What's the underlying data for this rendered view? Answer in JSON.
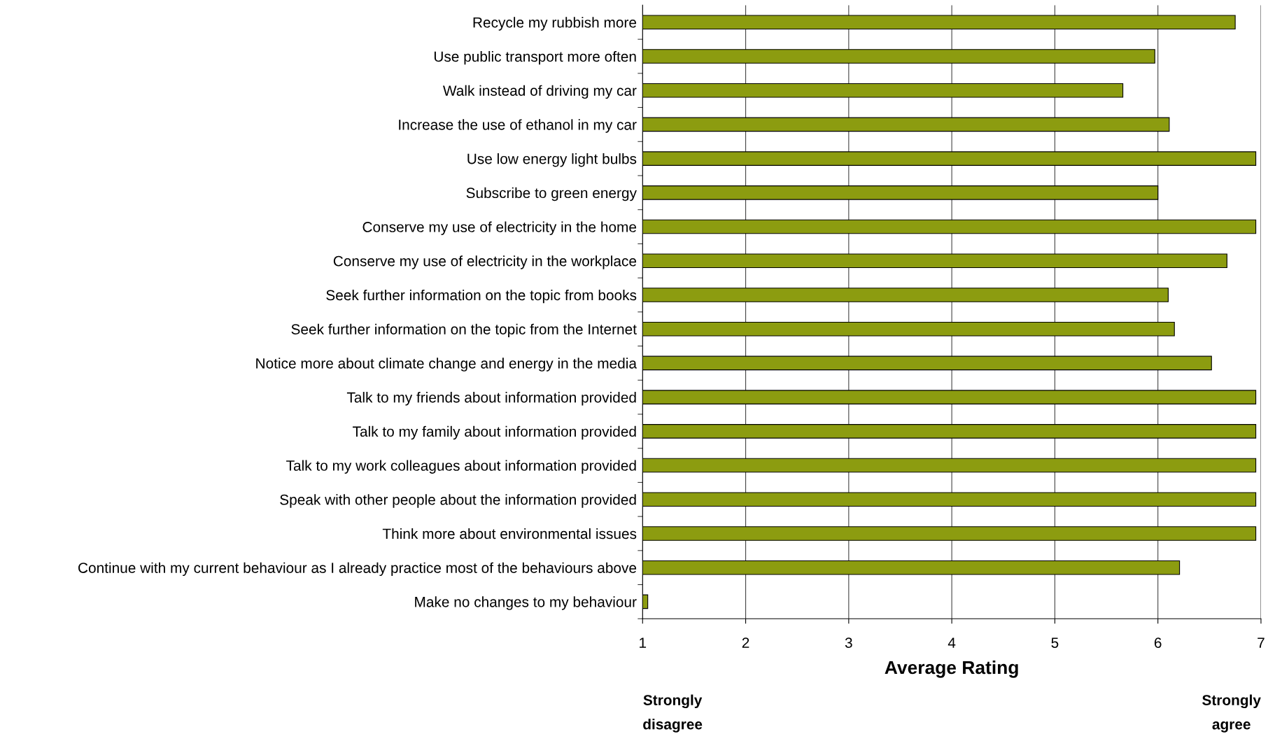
{
  "chart_data": {
    "type": "bar",
    "orientation": "horizontal",
    "xlabel": "Average Rating",
    "categories": [
      "Recycle my rubbish more",
      "Use public transport more often",
      "Walk instead of driving my car",
      "Increase the use of ethanol in my car",
      "Use low energy light bulbs",
      "Subscribe to green energy",
      "Conserve my use of electricity in the home",
      "Conserve my use of electricity in the workplace",
      "Seek further information on the topic from books",
      "Seek further information on the topic from the Internet",
      "Notice more about climate change and energy in the media",
      "Talk to my friends about information provided",
      "Talk to my family about information provided",
      "Talk to my work colleagues about information provided",
      "Speak with other people about the information provided",
      "Think more about environmental issues",
      "Continue with my current behaviour as I already practice most of the behaviours above",
      "Make no changes to my behaviour"
    ],
    "values": [
      6.75,
      5.97,
      5.66,
      6.11,
      6.95,
      6.0,
      6.95,
      6.67,
      6.1,
      6.16,
      6.52,
      6.95,
      6.95,
      6.95,
      6.95,
      6.95,
      6.21,
      1.05
    ],
    "color": "#8c9c10",
    "xlim": [
      1,
      7
    ],
    "xticks": [
      1,
      2,
      3,
      4,
      5,
      6,
      7
    ],
    "grid": "x",
    "legend": false,
    "annotations": [
      "Strongly\ndisagree",
      "Strongly\nagree"
    ]
  }
}
